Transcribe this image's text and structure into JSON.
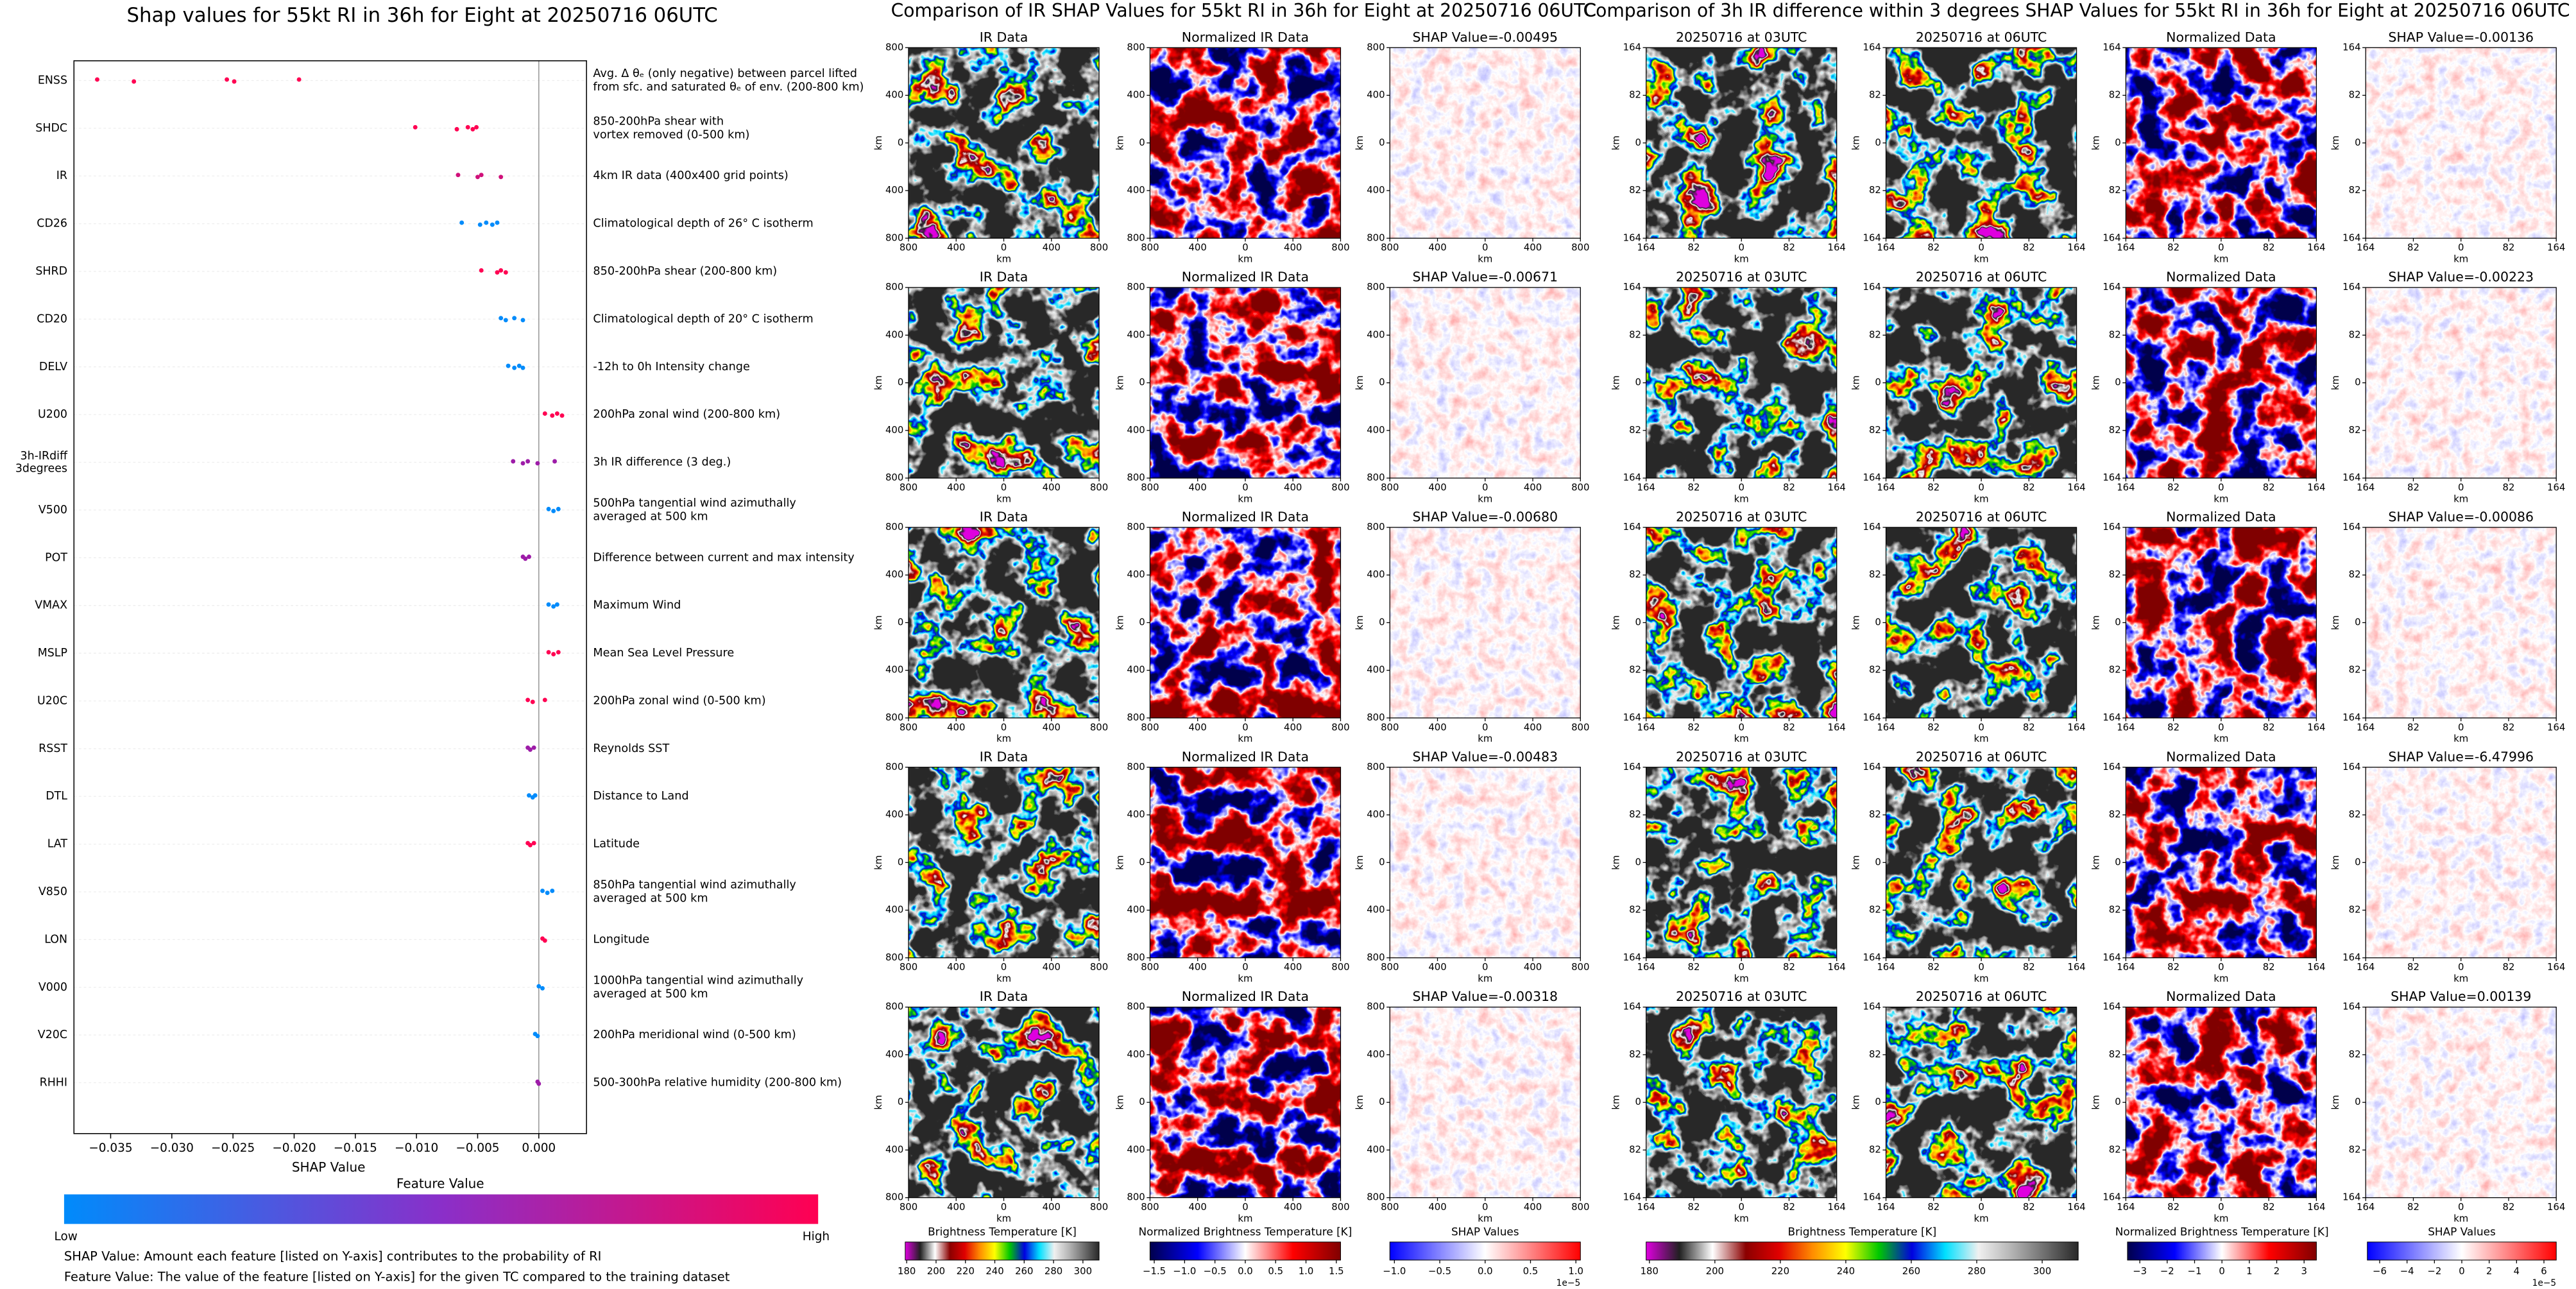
{
  "chart_data": [
    {
      "type": "scatter",
      "title": "Shap values for 55kt RI in 36h for Eight at 20250716 06UTC",
      "xlabel": "SHAP Value",
      "xlim": [
        -0.038,
        0.0039
      ],
      "xticks": [
        {
          "value": -0.035,
          "label": "−0.035"
        },
        {
          "value": -0.03,
          "label": "−0.030"
        },
        {
          "value": -0.025,
          "label": "−0.025"
        },
        {
          "value": -0.02,
          "label": "−0.020"
        },
        {
          "value": -0.015,
          "label": "−0.015"
        },
        {
          "value": -0.01,
          "label": "−0.010"
        },
        {
          "value": -0.005,
          "label": "−0.005"
        },
        {
          "value": 0,
          "label": "0.000"
        }
      ],
      "series": [
        {
          "name": "ENSS",
          "color": "#ff0052",
          "values": [
            -0.0361,
            -0.0331,
            -0.0255,
            -0.0249,
            -0.0196
          ]
        },
        {
          "name": "SHDC",
          "color": "#ff0052",
          "values": [
            -0.0101,
            -0.0067,
            -0.0058,
            -0.0054,
            -0.0051
          ]
        },
        {
          "name": "IR",
          "color": "#d0107a",
          "values": [
            -0.0066,
            -0.005,
            -0.0047,
            -0.0031
          ]
        },
        {
          "name": "CD26",
          "color": "#008bfb",
          "values": [
            -0.0063,
            -0.0048,
            -0.0043,
            -0.0038,
            -0.0034
          ]
        },
        {
          "name": "SHRD",
          "color": "#ff0052",
          "values": [
            -0.0047,
            -0.0034,
            -0.0031,
            -0.0027
          ]
        },
        {
          "name": "CD20",
          "color": "#008bfb",
          "values": [
            -0.0031,
            -0.0027,
            -0.002,
            -0.0013
          ]
        },
        {
          "name": "DELV",
          "color": "#008bfb",
          "values": [
            -0.0025,
            -0.002,
            -0.0016,
            -0.0013
          ]
        },
        {
          "name": "U200",
          "color": "#ff0052",
          "values": [
            0.0005,
            0.0011,
            0.0015,
            0.0019
          ]
        },
        {
          "name": "3h-IRdiff\n3degrees",
          "color": "#9d1ca8",
          "values": [
            -0.0021,
            -0.0013,
            -0.0009,
            -0.0001,
            0.0013
          ]
        },
        {
          "name": "V500",
          "color": "#008bfb",
          "values": [
            0.0008,
            0.0012,
            0.0016
          ]
        },
        {
          "name": "POT",
          "color": "#9d1ca8",
          "values": [
            -0.0013,
            -0.0011,
            -0.0008
          ]
        },
        {
          "name": "VMAX",
          "color": "#008bfb",
          "values": [
            0.0008,
            0.0012,
            0.0015
          ]
        },
        {
          "name": "MSLP",
          "color": "#ff0052",
          "values": [
            0.0008,
            0.0012,
            0.0016
          ]
        },
        {
          "name": "U20C",
          "color": "#ff0052",
          "values": [
            -0.0009,
            -0.0005,
            0.0005
          ]
        },
        {
          "name": "RSST",
          "color": "#9d1ca8",
          "values": [
            -0.0009,
            -0.0007,
            -0.0004
          ]
        },
        {
          "name": "DTL",
          "color": "#008bfb",
          "values": [
            -0.0008,
            -0.0005,
            -0.0003
          ]
        },
        {
          "name": "LAT",
          "color": "#ff0052",
          "values": [
            -0.0009,
            -0.0007,
            -0.0004
          ]
        },
        {
          "name": "V850",
          "color": "#008bfb",
          "values": [
            0.0003,
            0.0007,
            0.0011
          ]
        },
        {
          "name": "LON",
          "color": "#ff0052",
          "values": [
            0.0003,
            0.0005
          ]
        },
        {
          "name": "V000",
          "color": "#008bfb",
          "values": [
            0.0,
            0.0003
          ]
        },
        {
          "name": "V20C",
          "color": "#008bfb",
          "values": [
            -0.0003,
            -0.0001
          ]
        },
        {
          "name": "RHHI",
          "color": "#9d1ca8",
          "values": [
            -0.0001,
            0.0
          ]
        }
      ],
      "descriptions": [
        "Avg. Δ θₑ (only negative) between parcel lifted\nfrom sfc. and saturated θₑ of env. (200-800 km)",
        "850-200hPa shear with\nvortex removed (0-500 km)",
        "4km IR data (400x400 grid points)",
        "Climatological depth of 26° C isotherm",
        "850-200hPa shear (200-800 km)",
        "Climatological depth of 20° C isotherm",
        "-12h to 0h Intensity change",
        "200hPa zonal wind (200-800 km)",
        "3h IR difference (3 deg.)",
        "500hPa tangential wind azimuthally\naveraged at 500 km",
        "Difference between current and max intensity",
        "Maximum Wind",
        "Mean Sea Level Pressure",
        "200hPa zonal wind (0-500 km)",
        "Reynolds SST",
        "Distance to Land",
        "Latitude",
        "850hPa tangential wind azimuthally\naveraged at 500 km",
        "Longitude",
        "1000hPa tangential wind azimuthally\naveraged at 500 km",
        "200hPa meridional wind (0-500 km)",
        "500-300hPa relative humidity (200-800 km)"
      ],
      "colorbar": {
        "title": "Feature Value",
        "low": "Low",
        "high": "High",
        "colors": [
          "#008bfb",
          "#8a2fc9",
          "#ff0052"
        ]
      },
      "notes": [
        "SHAP Value: Amount each feature [listed on Y-axis] contributes to the probability of RI",
        "Feature Value: The value of the feature [listed on Y-axis] for the given TC compared to the training dataset"
      ]
    },
    {
      "type": "heatmap_grid",
      "title": "Comparison of IR SHAP Values for 55kt RI in 36h for Eight at 20250716 06UTC",
      "rows": [
        [
          "IR Data",
          "Normalized IR Data",
          "SHAP Value=-0.00495"
        ],
        [
          "IR Data",
          "Normalized IR Data",
          "SHAP Value=-0.00671"
        ],
        [
          "IR Data",
          "Normalized IR Data",
          "SHAP Value=-0.00680"
        ],
        [
          "IR Data",
          "Normalized IR Data",
          "SHAP Value=-0.00483"
        ],
        [
          "IR Data",
          "Normalized IR Data",
          "SHAP Value=-0.00318"
        ]
      ],
      "xticks": [
        800,
        400,
        0,
        400,
        800
      ],
      "yticks": [
        800,
        400,
        0,
        400,
        800
      ],
      "xlabel": "km",
      "ylabel": "km",
      "colorbars": [
        {
          "label": "Brightness Temperature [K]",
          "lim": [
            179,
            311
          ],
          "ticks": [
            180,
            200,
            220,
            240,
            260,
            280,
            300
          ],
          "colors": [
            "#e000e0",
            "#202020",
            "#ffffff",
            "#8b0000",
            "#e00000",
            "#ff8c00",
            "#ffff00",
            "#00c800",
            "#0000e0",
            "#00e0ff",
            "#f0f0f0",
            "#b4b4b4",
            "#6e6e6e",
            "#282828"
          ]
        },
        {
          "label": "Normalized Brightness Temperature [K]",
          "lim": [
            -1.57,
            1.57
          ],
          "ticks": [
            {
              "value": -1.5,
              "label": "−1.5"
            },
            {
              "value": -1.0,
              "label": "−1.0"
            },
            {
              "value": -0.5,
              "label": "−0.5"
            },
            {
              "value": 0,
              "label": "0.0"
            },
            {
              "value": 0.5,
              "label": "0.5"
            },
            {
              "value": 1.0,
              "label": "1.0"
            },
            {
              "value": 1.5,
              "label": "1.5"
            }
          ],
          "colors": [
            "#00004c",
            "#0000ff",
            "#ffffff",
            "#ff0000",
            "#800000"
          ]
        },
        {
          "label": "SHAP Values",
          "lim": [
            -1.05,
            1.05
          ],
          "ticks": [
            {
              "value": -1.0,
              "label": "−1.0"
            },
            {
              "value": -0.5,
              "label": "−0.5"
            },
            {
              "value": 0,
              "label": "0.0"
            },
            {
              "value": 0.5,
              "label": "0.5"
            },
            {
              "value": 1.0,
              "label": "1.0"
            }
          ],
          "offset": "1e−5",
          "colors": [
            "#0000ff",
            "#ffffff",
            "#ff0000"
          ]
        }
      ]
    },
    {
      "type": "heatmap_grid",
      "title": "Comparison of 3h IR difference within 3 degrees SHAP Values for 55kt RI in 36h for Eight at 20250716 06UTC",
      "rows": [
        [
          "20250716 at 03UTC",
          "20250716 at 06UTC",
          "Normalized Data",
          "SHAP Value=-0.00136"
        ],
        [
          "20250716 at 03UTC",
          "20250716 at 06UTC",
          "Normalized Data",
          "SHAP Value=-0.00223"
        ],
        [
          "20250716 at 03UTC",
          "20250716 at 06UTC",
          "Normalized Data",
          "SHAP Value=-0.00086"
        ],
        [
          "20250716 at 03UTC",
          "20250716 at 06UTC",
          "Normalized Data",
          "SHAP Value=-6.47996"
        ],
        [
          "20250716 at 03UTC",
          "20250716 at 06UTC",
          "Normalized Data",
          "SHAP Value=0.00139"
        ]
      ],
      "xticks": [
        164,
        82,
        0,
        82,
        164
      ],
      "yticks": [
        164,
        82,
        0,
        82,
        164
      ],
      "xlabel": "km",
      "ylabel": "km",
      "colorbars": [
        {
          "label": "Brightness Temperature [K]",
          "lim": [
            179,
            311
          ],
          "ticks": [
            180,
            200,
            220,
            240,
            260,
            280,
            300
          ],
          "colors": [
            "#e000e0",
            "#202020",
            "#ffffff",
            "#8b0000",
            "#e00000",
            "#ff8c00",
            "#ffff00",
            "#00c800",
            "#0000e0",
            "#00e0ff",
            "#f0f0f0",
            "#b4b4b4",
            "#6e6e6e",
            "#282828"
          ]
        },
        {
          "label": "Normalized Brightness Temperature [K]",
          "lim": [
            -3.45,
            3.45
          ],
          "ticks": [
            {
              "value": -3,
              "label": "−3"
            },
            {
              "value": -2,
              "label": "−2"
            },
            {
              "value": -1,
              "label": "−1"
            },
            0,
            1,
            2,
            3
          ],
          "colors": [
            "#00004c",
            "#0000ff",
            "#ffffff",
            "#ff0000",
            "#800000"
          ]
        },
        {
          "label": "SHAP Values",
          "lim": [
            -6.9,
            6.9
          ],
          "ticks": [
            {
              "value": -6,
              "label": "−6"
            },
            {
              "value": -4,
              "label": "−4"
            },
            {
              "value": -2,
              "label": "−2"
            },
            0,
            2,
            4,
            6
          ],
          "offset": "1e−5",
          "colors": [
            "#0000ff",
            "#ffffff",
            "#ff0000"
          ]
        }
      ]
    }
  ]
}
